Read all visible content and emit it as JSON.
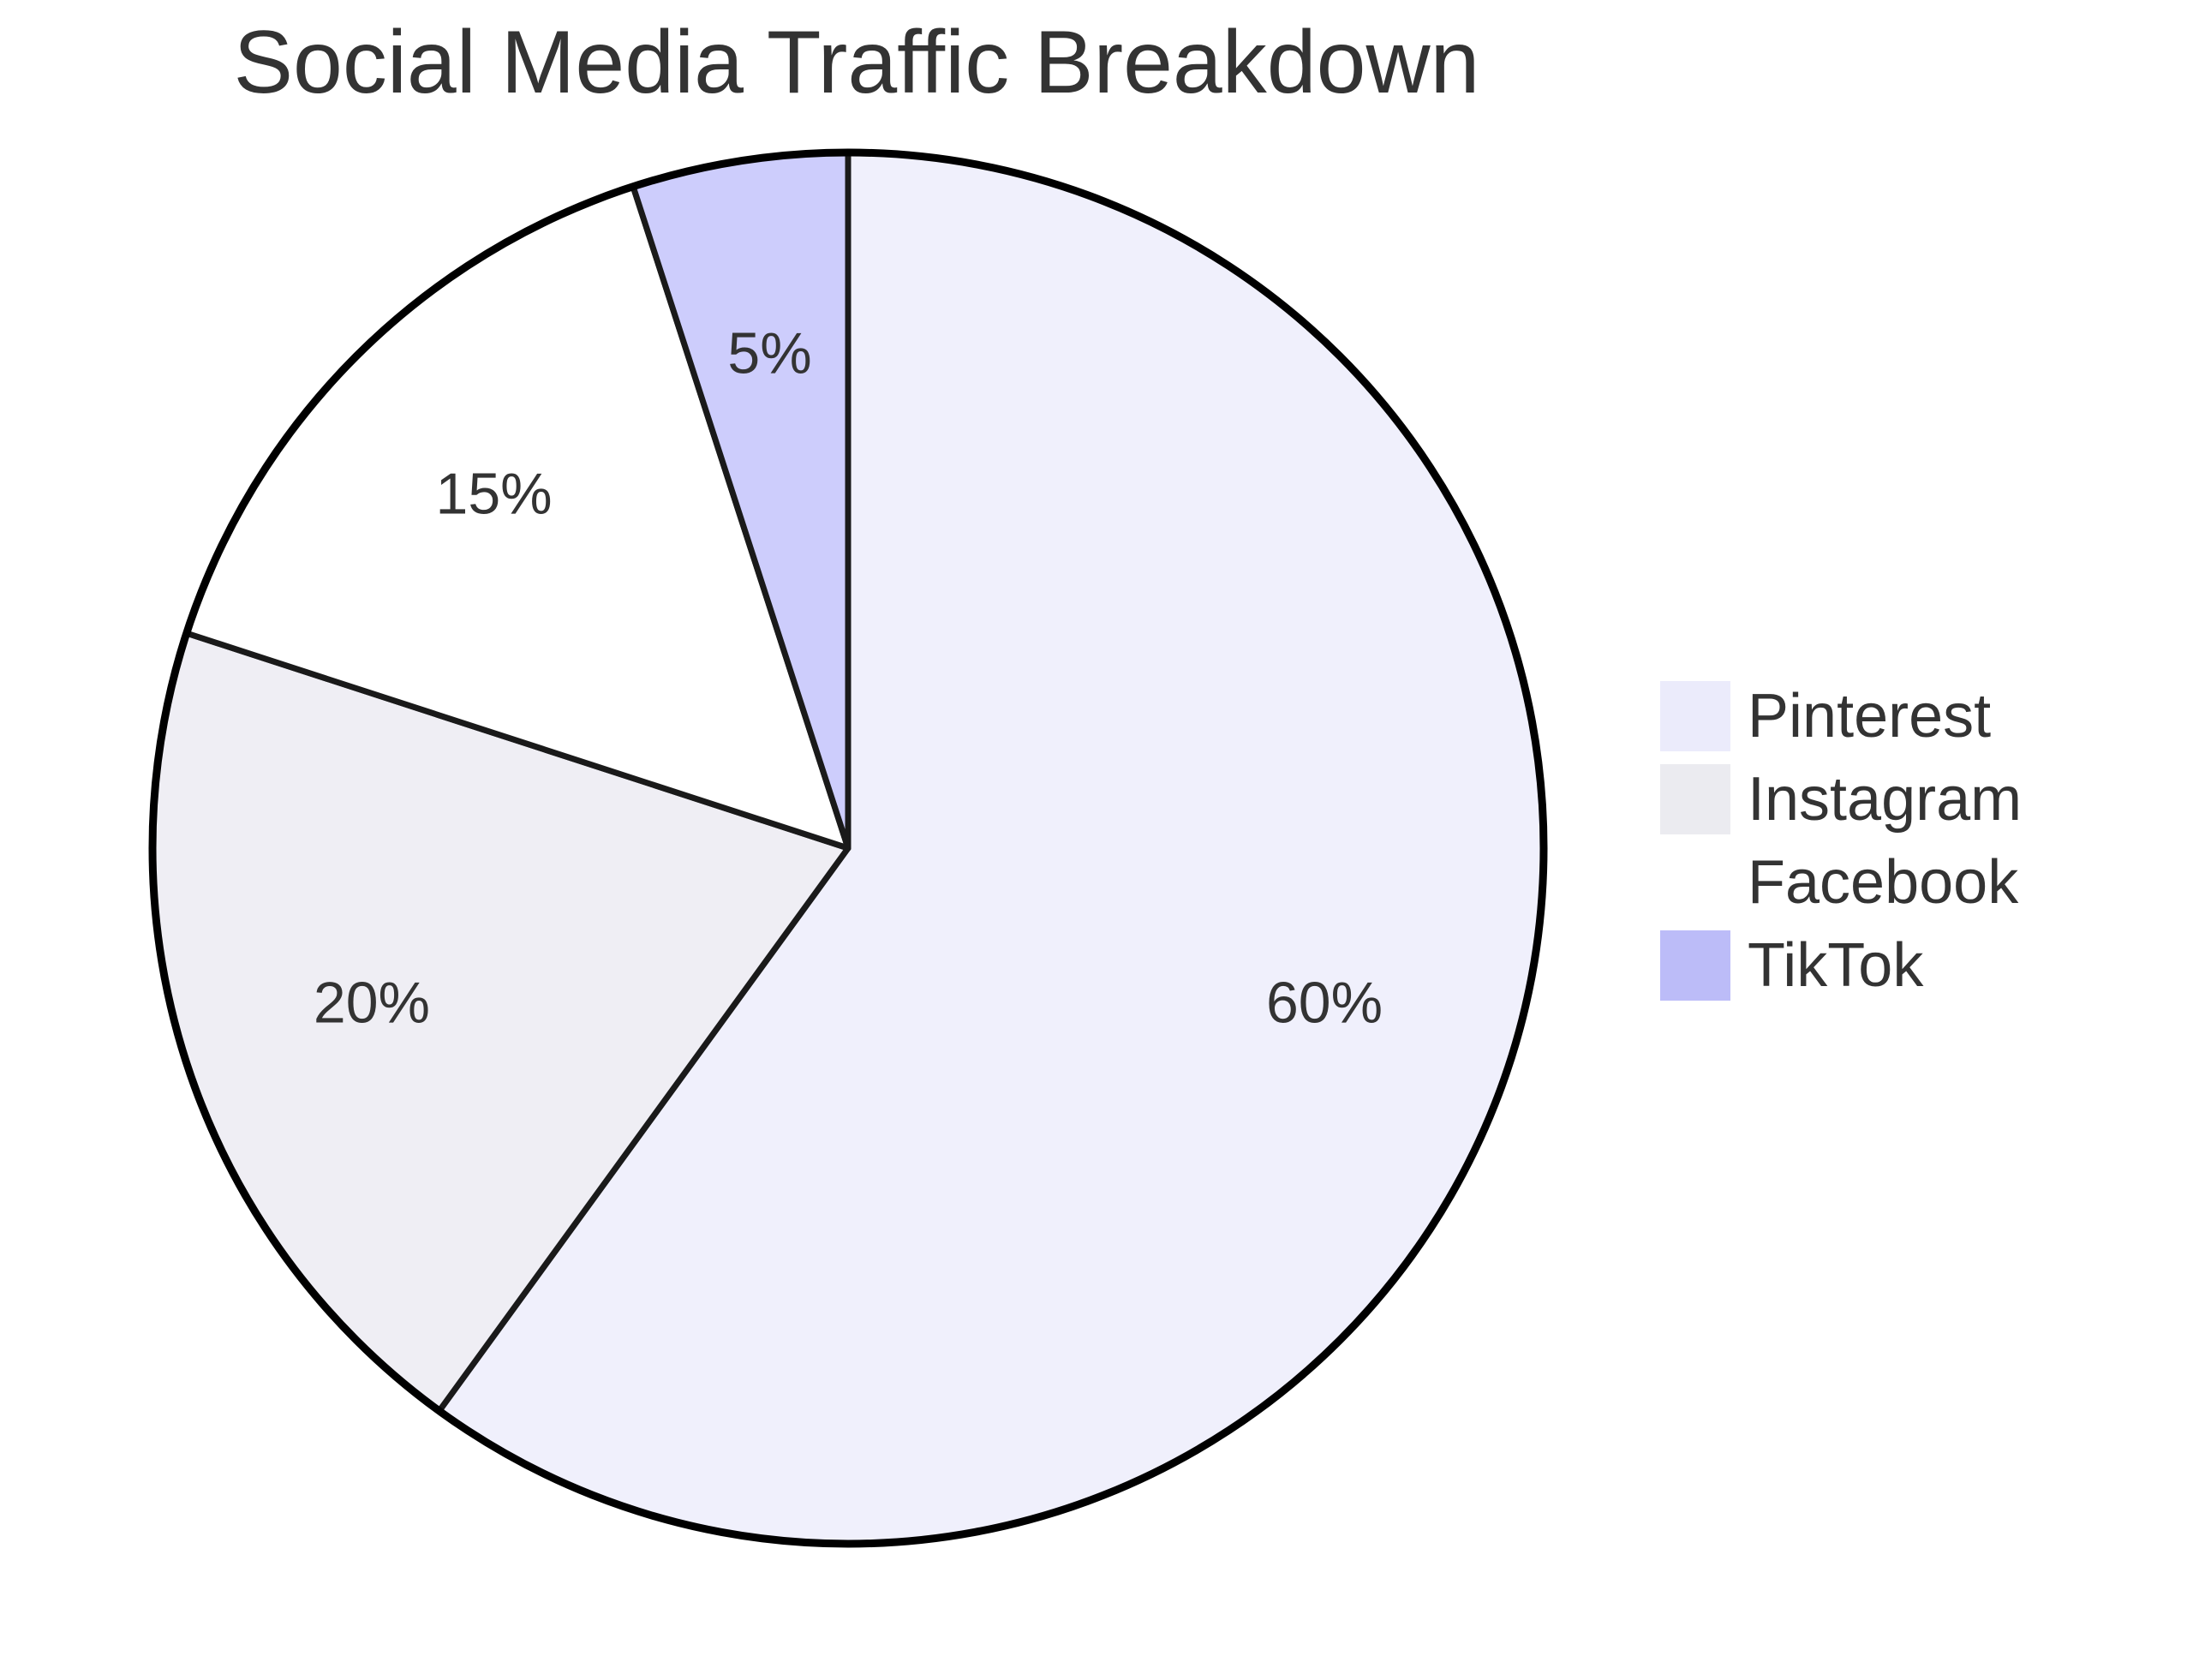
{
  "chart_data": {
    "type": "pie",
    "title": "Social Media Traffic Breakdown",
    "categories": [
      "Pinterest",
      "Instagram",
      "Facebook",
      "TikTok"
    ],
    "values": [
      60,
      20,
      15,
      5
    ],
    "labels": [
      "60%",
      "20%",
      "15%",
      "5%"
    ],
    "colors": [
      "#f0f0fc",
      "#efeef4",
      "#ffffff",
      "#cdcdfc"
    ],
    "legend_colors": [
      "#ebebfb",
      "#ebebf0",
      "#ffffff",
      "#bcbcf8"
    ],
    "legend": "right"
  }
}
